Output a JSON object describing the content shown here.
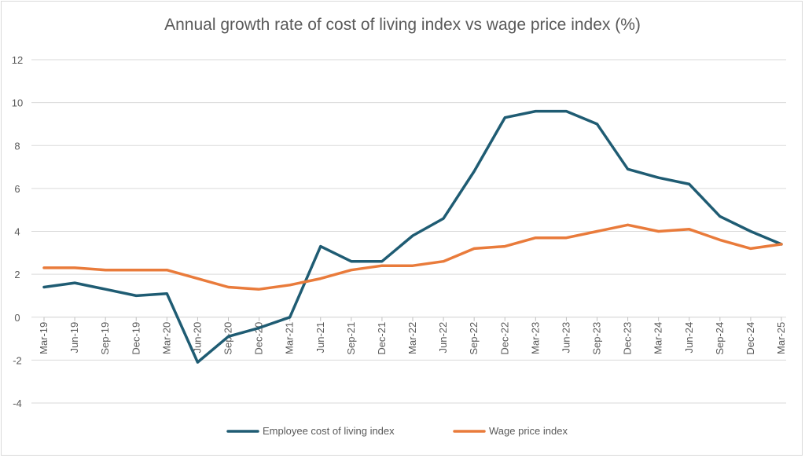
{
  "chart_data": {
    "type": "line",
    "title": "Annual growth rate of cost of living index vs wage price index (%)",
    "xlabel": "",
    "ylabel": "",
    "ylim": [
      -4,
      12
    ],
    "yticks": [
      "-4",
      "-2",
      "0",
      "2",
      "4",
      "6",
      "8",
      "10",
      "12"
    ],
    "grid": true,
    "legend_position": "bottom",
    "categories": [
      "Mar-19",
      "Jun-19",
      "Sep-19",
      "Dec-19",
      "Mar-20",
      "Jun-20",
      "Sep-20",
      "Dec-20",
      "Mar-21",
      "Jun-21",
      "Sep-21",
      "Dec-21",
      "Mar-22",
      "Jun-22",
      "Sep-22",
      "Dec-22",
      "Mar-23",
      "Jun-23",
      "Sep-23",
      "Dec-23",
      "Mar-24",
      "Jun-24",
      "Sep-24",
      "Dec-24",
      "Mar-25"
    ],
    "series": [
      {
        "name": "Employee cost of living index",
        "color": "#1f5c73",
        "values": [
          1.4,
          1.6,
          1.3,
          1.0,
          1.1,
          -2.1,
          -0.9,
          -0.5,
          0.0,
          3.3,
          2.6,
          2.6,
          3.8,
          4.6,
          6.8,
          9.3,
          9.6,
          9.6,
          9.0,
          6.9,
          6.5,
          6.2,
          4.7,
          4.0,
          3.4
        ]
      },
      {
        "name": "Wage price index",
        "color": "#e97b3b",
        "values": [
          2.3,
          2.3,
          2.2,
          2.2,
          2.2,
          1.8,
          1.4,
          1.3,
          1.5,
          1.8,
          2.2,
          2.4,
          2.4,
          2.6,
          3.2,
          3.3,
          3.7,
          3.7,
          4.0,
          4.3,
          4.0,
          4.1,
          3.6,
          3.2,
          3.4
        ]
      }
    ]
  }
}
